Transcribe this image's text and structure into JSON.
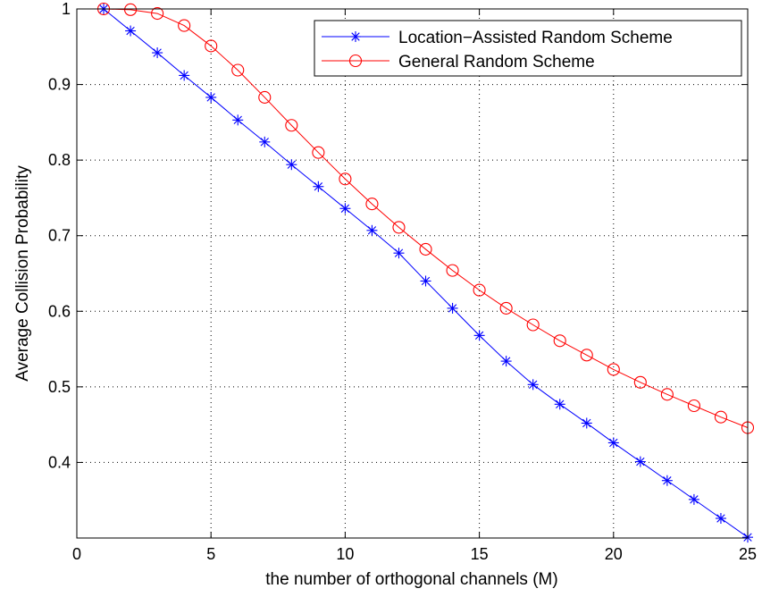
{
  "chart_data": {
    "type": "line",
    "title": "",
    "xlabel": "the number of orthogonal channels (M)",
    "ylabel": "Average Collision Probability",
    "xlim": [
      0,
      25
    ],
    "ylim": [
      0.3,
      1.0
    ],
    "xticks": [
      0,
      5,
      10,
      15,
      20,
      25
    ],
    "yticks": [
      0.4,
      0.5,
      0.6,
      0.7,
      0.8,
      0.9,
      1
    ],
    "grid": true,
    "legend_position": "top-right",
    "x": [
      1,
      2,
      3,
      4,
      5,
      6,
      7,
      8,
      9,
      10,
      11,
      12,
      13,
      14,
      15,
      16,
      17,
      18,
      19,
      20,
      21,
      22,
      23,
      24,
      25
    ],
    "series": [
      {
        "name": "Location−Assisted Random Scheme",
        "color": "#0000ff",
        "marker": "asterisk",
        "values": [
          1.0,
          0.971,
          0.942,
          0.912,
          0.883,
          0.853,
          0.824,
          0.794,
          0.765,
          0.736,
          0.707,
          0.677,
          0.64,
          0.604,
          0.568,
          0.534,
          0.503,
          0.477,
          0.452,
          0.426,
          0.401,
          0.376,
          0.351,
          0.326,
          0.301
        ]
      },
      {
        "name": "General Random Scheme",
        "color": "#ff0000",
        "marker": "circle",
        "values": [
          1.0,
          0.999,
          0.994,
          0.978,
          0.951,
          0.919,
          0.883,
          0.846,
          0.81,
          0.775,
          0.742,
          0.711,
          0.682,
          0.654,
          0.628,
          0.604,
          0.582,
          0.561,
          0.542,
          0.523,
          0.506,
          0.49,
          0.475,
          0.46,
          0.446
        ]
      }
    ]
  }
}
